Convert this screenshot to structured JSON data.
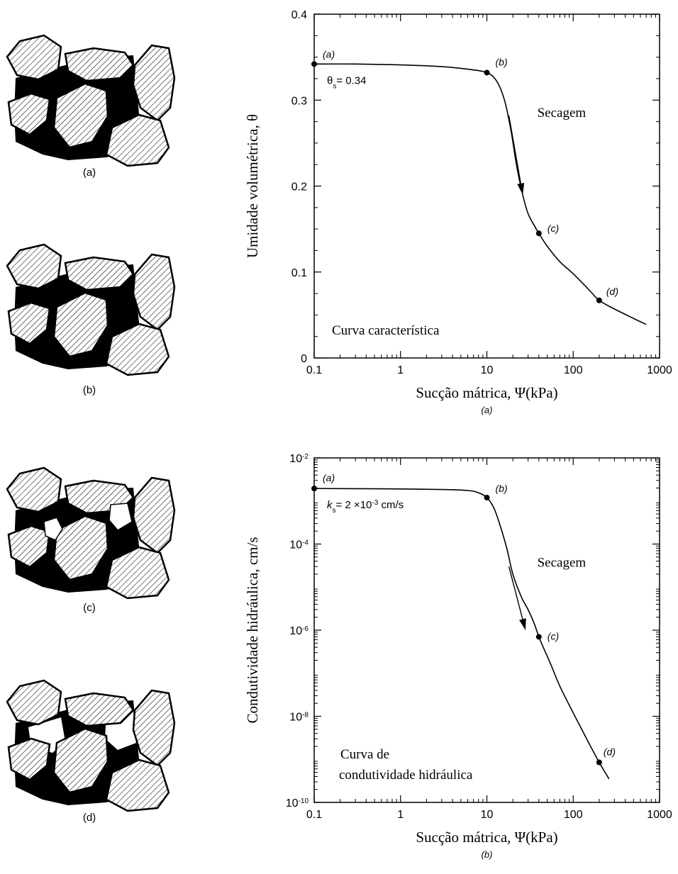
{
  "soil_panels": [
    {
      "caption": "(a)"
    },
    {
      "caption": "(b)"
    },
    {
      "caption": "(c)"
    },
    {
      "caption": "(d)"
    }
  ],
  "chart_data": [
    {
      "type": "line",
      "caption": "(a)",
      "xlabel": "Sucção mátrica, Ψ(kPa)",
      "ylabel": "Umidade volumétrica, θ",
      "xscale": "log",
      "yscale": "linear",
      "xlim": [
        0.1,
        1000
      ],
      "ylim": [
        0,
        0.4
      ],
      "xticks": [
        {
          "value": 0.1,
          "label": "0.1"
        },
        {
          "value": 1,
          "label": "1"
        },
        {
          "value": 10,
          "label": "10"
        },
        {
          "value": 100,
          "label": "100"
        },
        {
          "value": 1000,
          "label": "1000"
        }
      ],
      "yticks": [
        {
          "value": 0,
          "label": "0"
        },
        {
          "value": 0.1,
          "label": "0.1"
        },
        {
          "value": 0.2,
          "label": "0.2"
        },
        {
          "value": 0.3,
          "label": "0.3"
        },
        {
          "value": 0.4,
          "label": "0.4"
        }
      ],
      "curve": {
        "x": [
          0.1,
          0.3,
          1,
          3,
          6,
          10,
          13,
          16,
          19,
          22,
          26,
          30,
          35,
          40,
          50,
          70,
          100,
          150,
          200,
          300,
          500,
          700
        ],
        "y": [
          0.342,
          0.342,
          0.341,
          0.339,
          0.336,
          0.332,
          0.322,
          0.3,
          0.265,
          0.225,
          0.19,
          0.168,
          0.155,
          0.145,
          0.13,
          0.112,
          0.098,
          0.08,
          0.067,
          0.057,
          0.046,
          0.039
        ]
      },
      "points": [
        {
          "label": "(a)",
          "x": 0.1,
          "y": 0.342
        },
        {
          "label": "(b)",
          "x": 10,
          "y": 0.332
        },
        {
          "label": "(c)",
          "x": 40,
          "y": 0.145
        },
        {
          "label": "(d)",
          "x": 200,
          "y": 0.067
        }
      ],
      "annotations": {
        "saturated": "θs = 0.34",
        "saturated_symbol": "θ",
        "saturated_sub": "s",
        "saturated_rest": "= 0.34",
        "arrow_label": "Secagem",
        "curve_name": "Curva característica"
      },
      "arrow": {
        "x_from": 18,
        "y_from": 0.282,
        "x_to": 26,
        "y_to": 0.19
      }
    },
    {
      "type": "line",
      "caption": "(b)",
      "xlabel": "Sucção mátrica, Ψ(kPa)",
      "ylabel": "Condutividade hidráulica, cm/s",
      "xscale": "log",
      "yscale": "log",
      "xlim": [
        0.1,
        1000
      ],
      "ylim": [
        1e-10,
        0.01
      ],
      "xticks": [
        {
          "value": 0.1,
          "label": "0.1"
        },
        {
          "value": 1,
          "label": "1"
        },
        {
          "value": 10,
          "label": "10"
        },
        {
          "value": 100,
          "label": "100"
        },
        {
          "value": 1000,
          "label": "1000"
        }
      ],
      "yticks": [
        {
          "value": 1e-10,
          "base": "10",
          "exp": "-10"
        },
        {
          "value": 1e-08,
          "base": "10",
          "exp": "-8"
        },
        {
          "value": 1e-06,
          "base": "10",
          "exp": "-6"
        },
        {
          "value": 0.0001,
          "base": "10",
          "exp": "-4"
        },
        {
          "value": 0.01,
          "base": "10",
          "exp": "-2"
        }
      ],
      "curve": {
        "x": [
          0.1,
          0.3,
          1,
          3,
          6,
          8,
          10,
          12,
          14,
          17,
          20,
          25,
          30,
          35,
          40,
          45,
          55,
          70,
          100,
          150,
          200,
          260
        ],
        "y": [
          0.00195,
          0.00193,
          0.0019,
          0.00185,
          0.00175,
          0.00155,
          0.0012,
          0.0007,
          0.0003,
          8e-05,
          2e-05,
          6e-06,
          3e-06,
          1.5e-06,
          7e-07,
          4e-07,
          1.6e-07,
          5e-08,
          1.2e-08,
          2.5e-09,
          8.5e-10,
          3.5e-10
        ]
      },
      "points": [
        {
          "label": "(a)",
          "x": 0.1,
          "y": 0.00195
        },
        {
          "label": "(b)",
          "x": 10,
          "y": 0.0012
        },
        {
          "label": "(c)",
          "x": 40,
          "y": 7e-07
        },
        {
          "label": "(d)",
          "x": 200,
          "y": 8.5e-10
        }
      ],
      "annotations": {
        "saturated_k": "k",
        "saturated_sub": "s",
        "saturated_rest": "= 2 ×10",
        "saturated_exp": "-3",
        "saturated_unit": " cm/s",
        "arrow_label": "Secagem",
        "curve_name_line1": "Curva de",
        "curve_name_line2": "condutividade hidráulica"
      },
      "arrow": {
        "x_from": 18,
        "y_from": 3e-05,
        "x_to": 28,
        "y_to": 1e-06
      }
    }
  ]
}
